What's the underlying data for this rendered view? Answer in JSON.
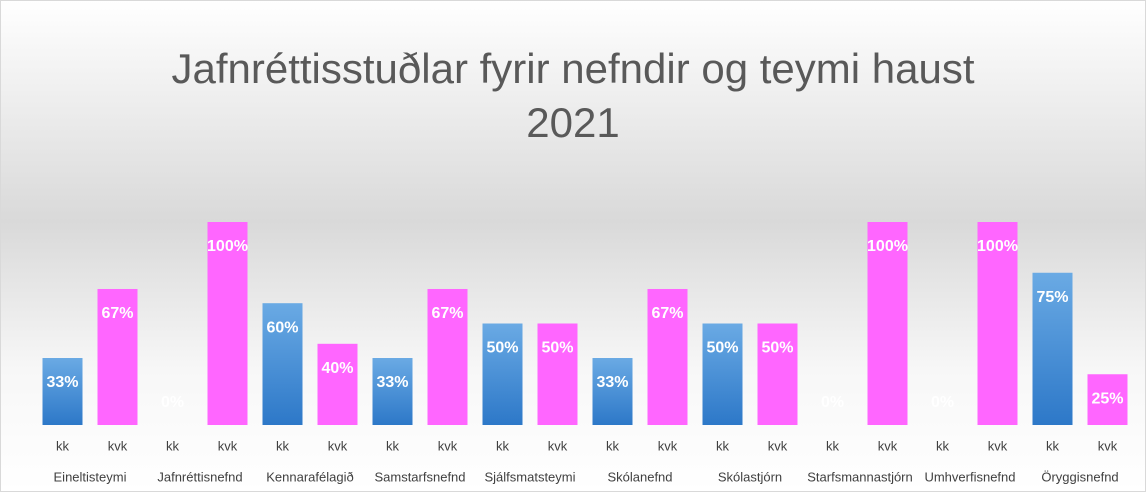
{
  "chart_data": {
    "type": "bar",
    "title": "Jafnréttisstuðlar fyrir nefndir og teymi haust 2021",
    "categories": [
      "Eineltisteymi",
      "Jafnréttisnefnd",
      "Kennarafélagið",
      "Samstarfsnefnd",
      "Sjálfsmatsteymi",
      "Skólanefnd",
      "Skólastjórn",
      "Starfsmannastjórn",
      "Umhverfisnefnd",
      "Öryggisnefnd"
    ],
    "series": [
      {
        "name": "kk",
        "color": "#4a8fd6",
        "values": [
          33,
          0,
          60,
          33,
          50,
          33,
          50,
          0,
          0,
          75
        ],
        "value_labels": [
          "33%",
          "0%",
          "60%",
          "33%",
          "50%",
          "33%",
          "50%",
          "0%",
          "0%",
          "75%"
        ]
      },
      {
        "name": "kvk",
        "color": "#ff66ff",
        "values": [
          67,
          100,
          40,
          67,
          50,
          67,
          50,
          100,
          100,
          25
        ],
        "value_labels": [
          "67%",
          "100%",
          "40%",
          "67%",
          "50%",
          "67%",
          "50%",
          "100%",
          "100%",
          "25%"
        ]
      }
    ],
    "ylim": [
      0,
      100
    ]
  }
}
